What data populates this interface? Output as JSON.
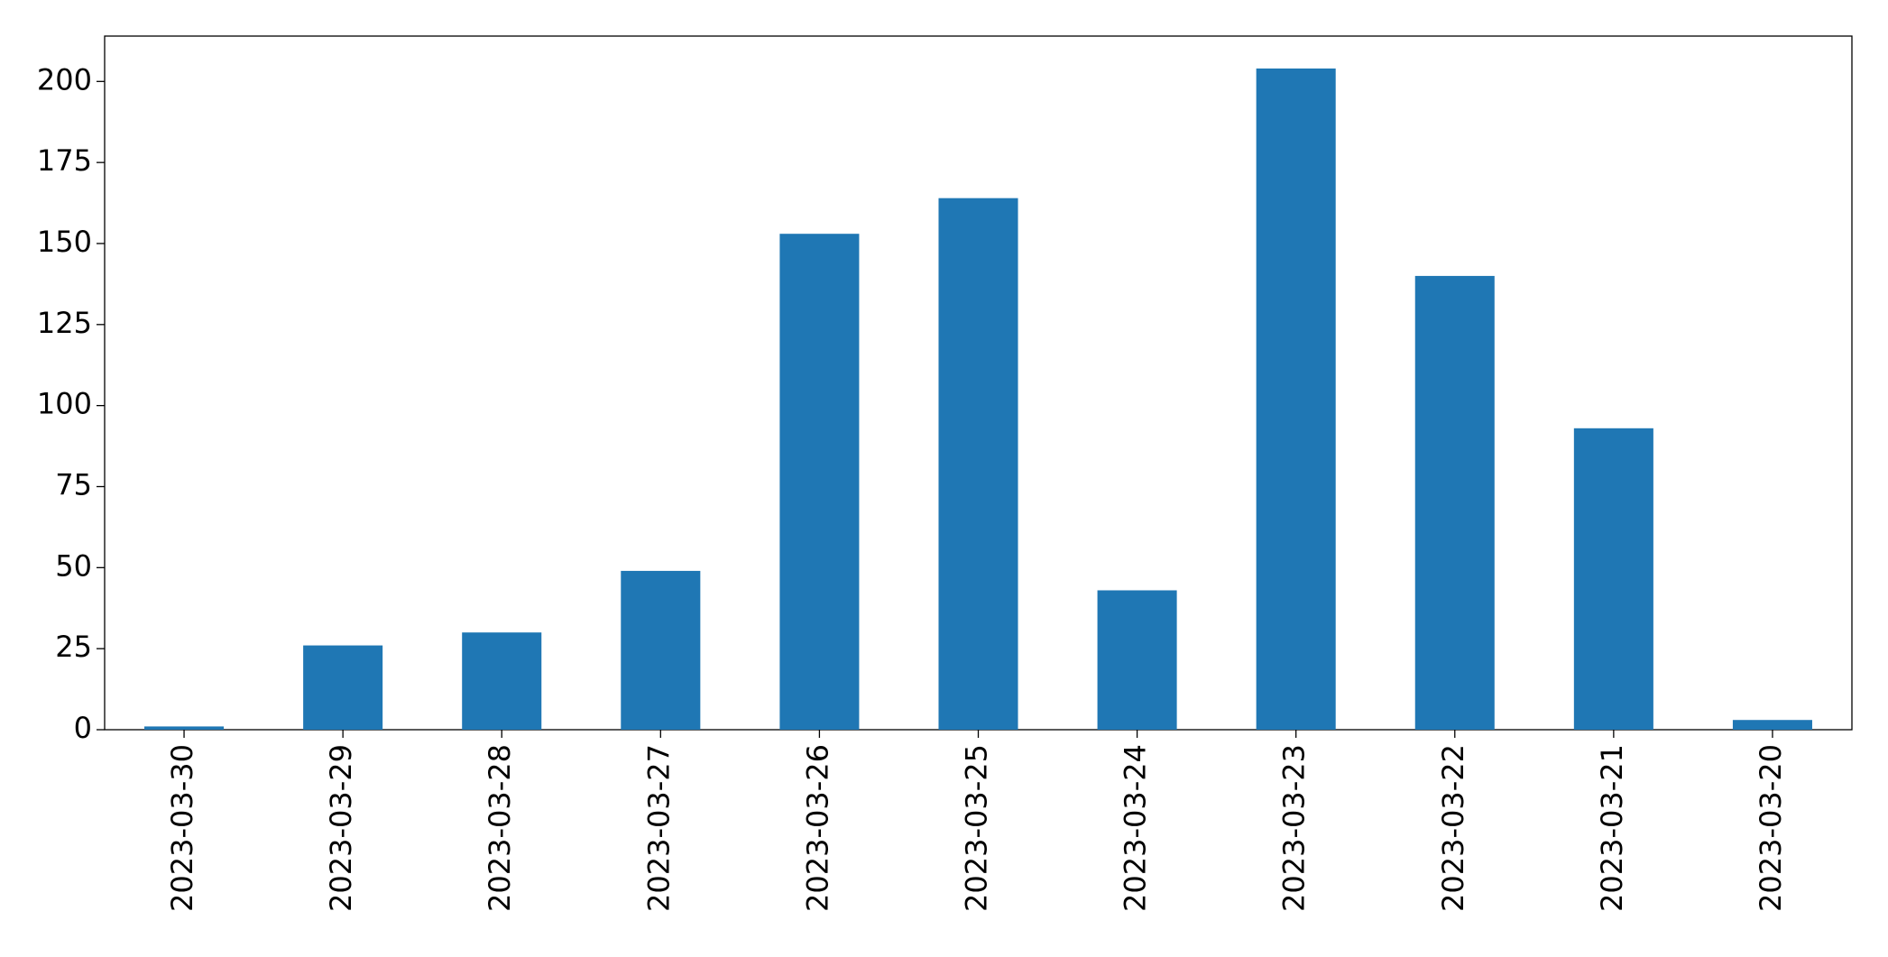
{
  "chart_data": {
    "type": "bar",
    "categories": [
      "2023-03-30",
      "2023-03-29",
      "2023-03-28",
      "2023-03-27",
      "2023-03-26",
      "2023-03-25",
      "2023-03-24",
      "2023-03-23",
      "2023-03-22",
      "2023-03-21",
      "2023-03-20"
    ],
    "values": [
      1,
      26,
      30,
      49,
      153,
      164,
      43,
      204,
      140,
      93,
      3
    ],
    "color": "#1f77b4",
    "ylim": [
      0,
      214
    ],
    "yticks": [
      0,
      25,
      50,
      75,
      100,
      125,
      150,
      175,
      200
    ],
    "grid": false
  }
}
